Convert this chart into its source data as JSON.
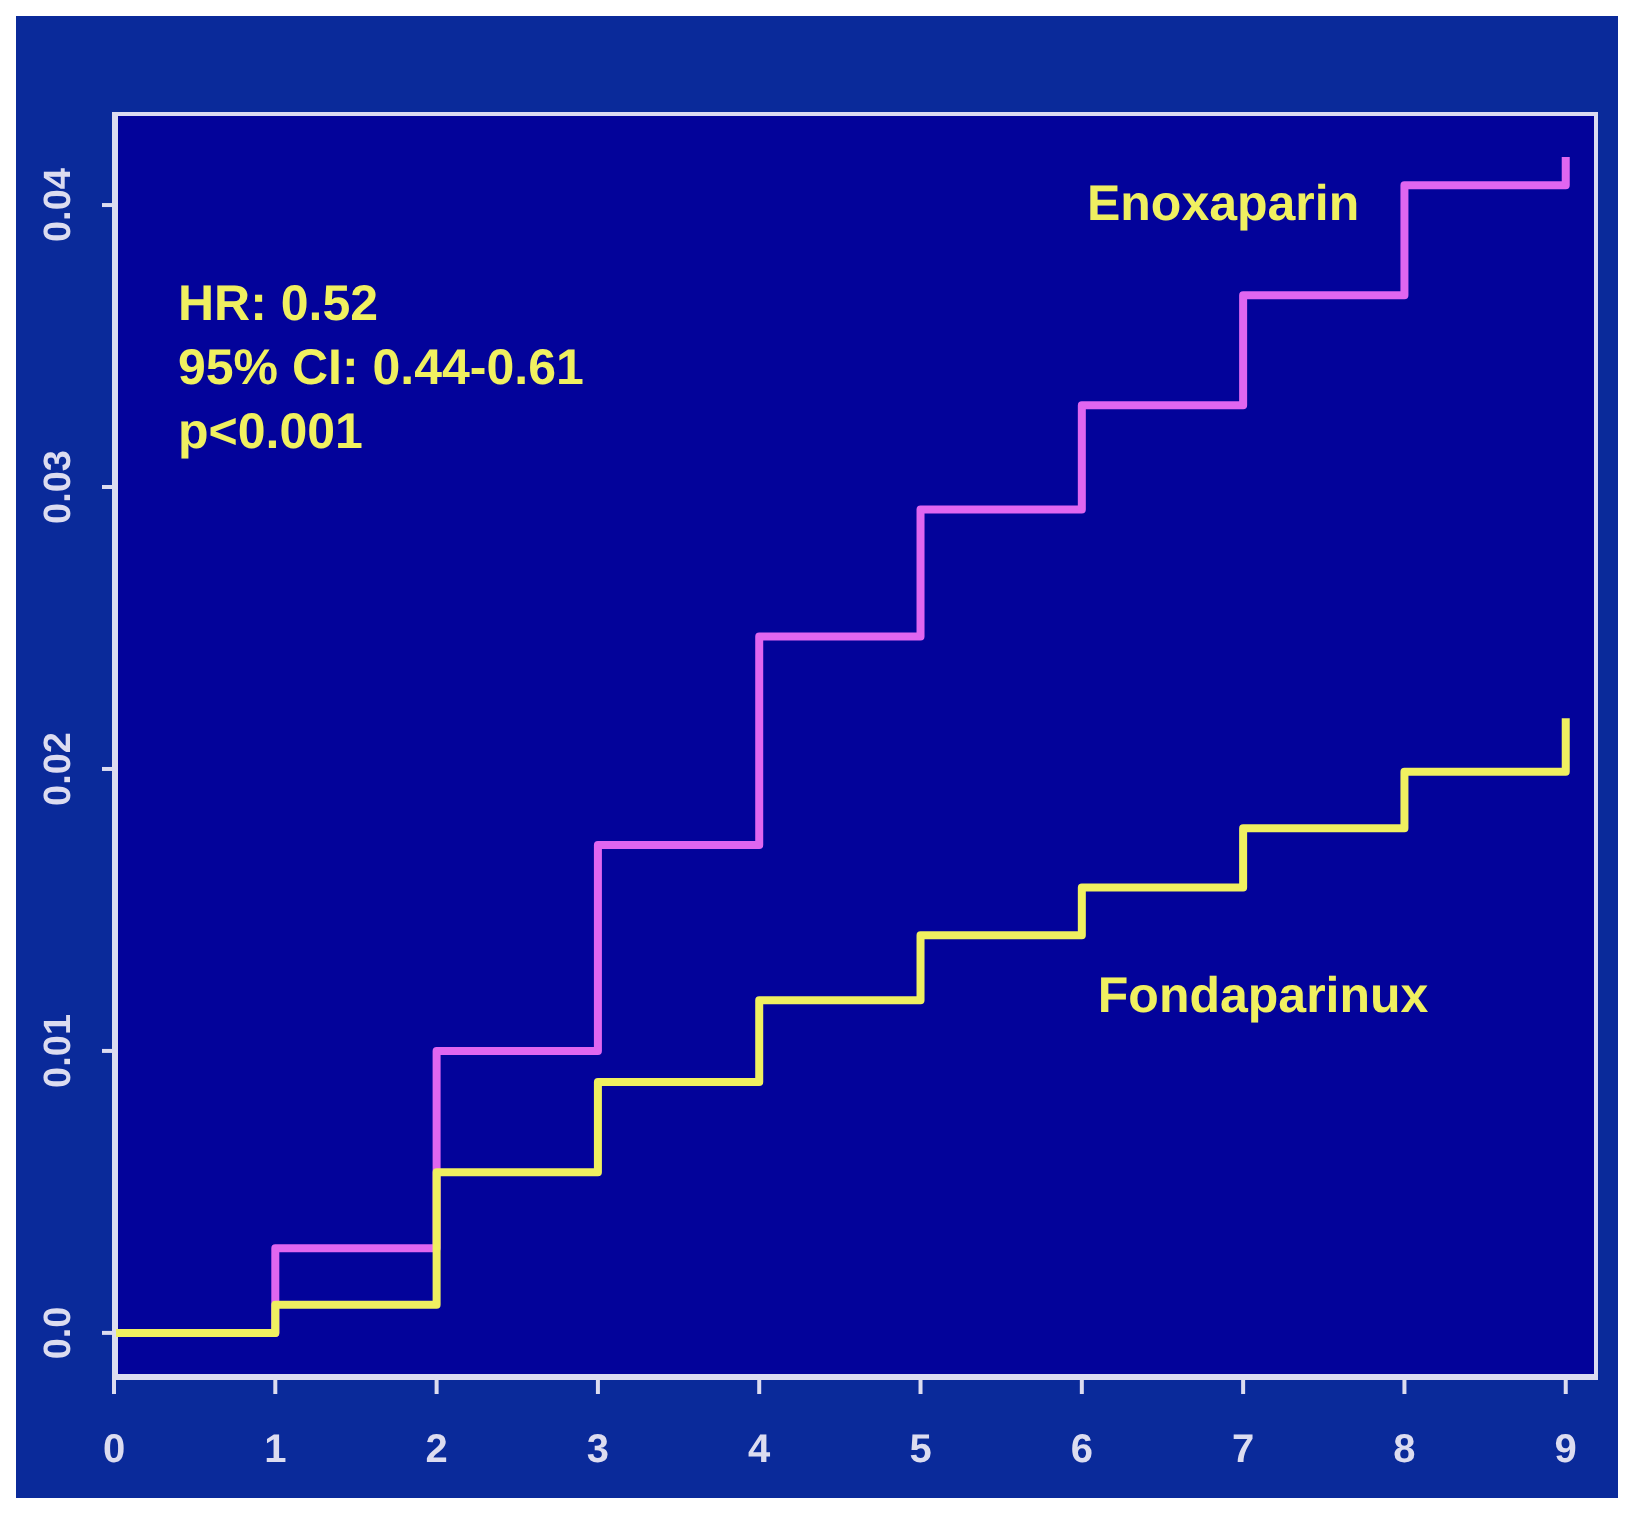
{
  "chart_data": {
    "type": "step",
    "x": [
      0,
      1,
      2,
      3,
      4,
      5,
      6,
      7,
      8,
      9
    ],
    "series": [
      {
        "name": "Enoxaparin",
        "color": "#e066f0",
        "values": [
          0,
          0.003,
          0.01,
          0.0173,
          0.0247,
          0.0292,
          0.0329,
          0.0368,
          0.0407,
          0.0417
        ]
      },
      {
        "name": "Fondaparinux",
        "color": "#f0f060",
        "values": [
          0,
          0.001,
          0.0057,
          0.0089,
          0.0118,
          0.0141,
          0.0158,
          0.0179,
          0.0199,
          0.0218
        ]
      }
    ],
    "xlim": [
      0,
      9.2
    ],
    "xticks": [
      0,
      1,
      2,
      3,
      4,
      5,
      6,
      7,
      8,
      9
    ],
    "ylim": [
      -0.0016,
      0.0433
    ],
    "yticks": [
      {
        "value": 0,
        "label": "0.0"
      },
      0.01,
      0.02,
      0.03,
      0.04
    ],
    "annotations": [
      "HR: 0.52",
      "95% CI: 0.44-0.61",
      "p<0.001"
    ],
    "grid": false,
    "marker": "none",
    "line_style": "solid"
  }
}
